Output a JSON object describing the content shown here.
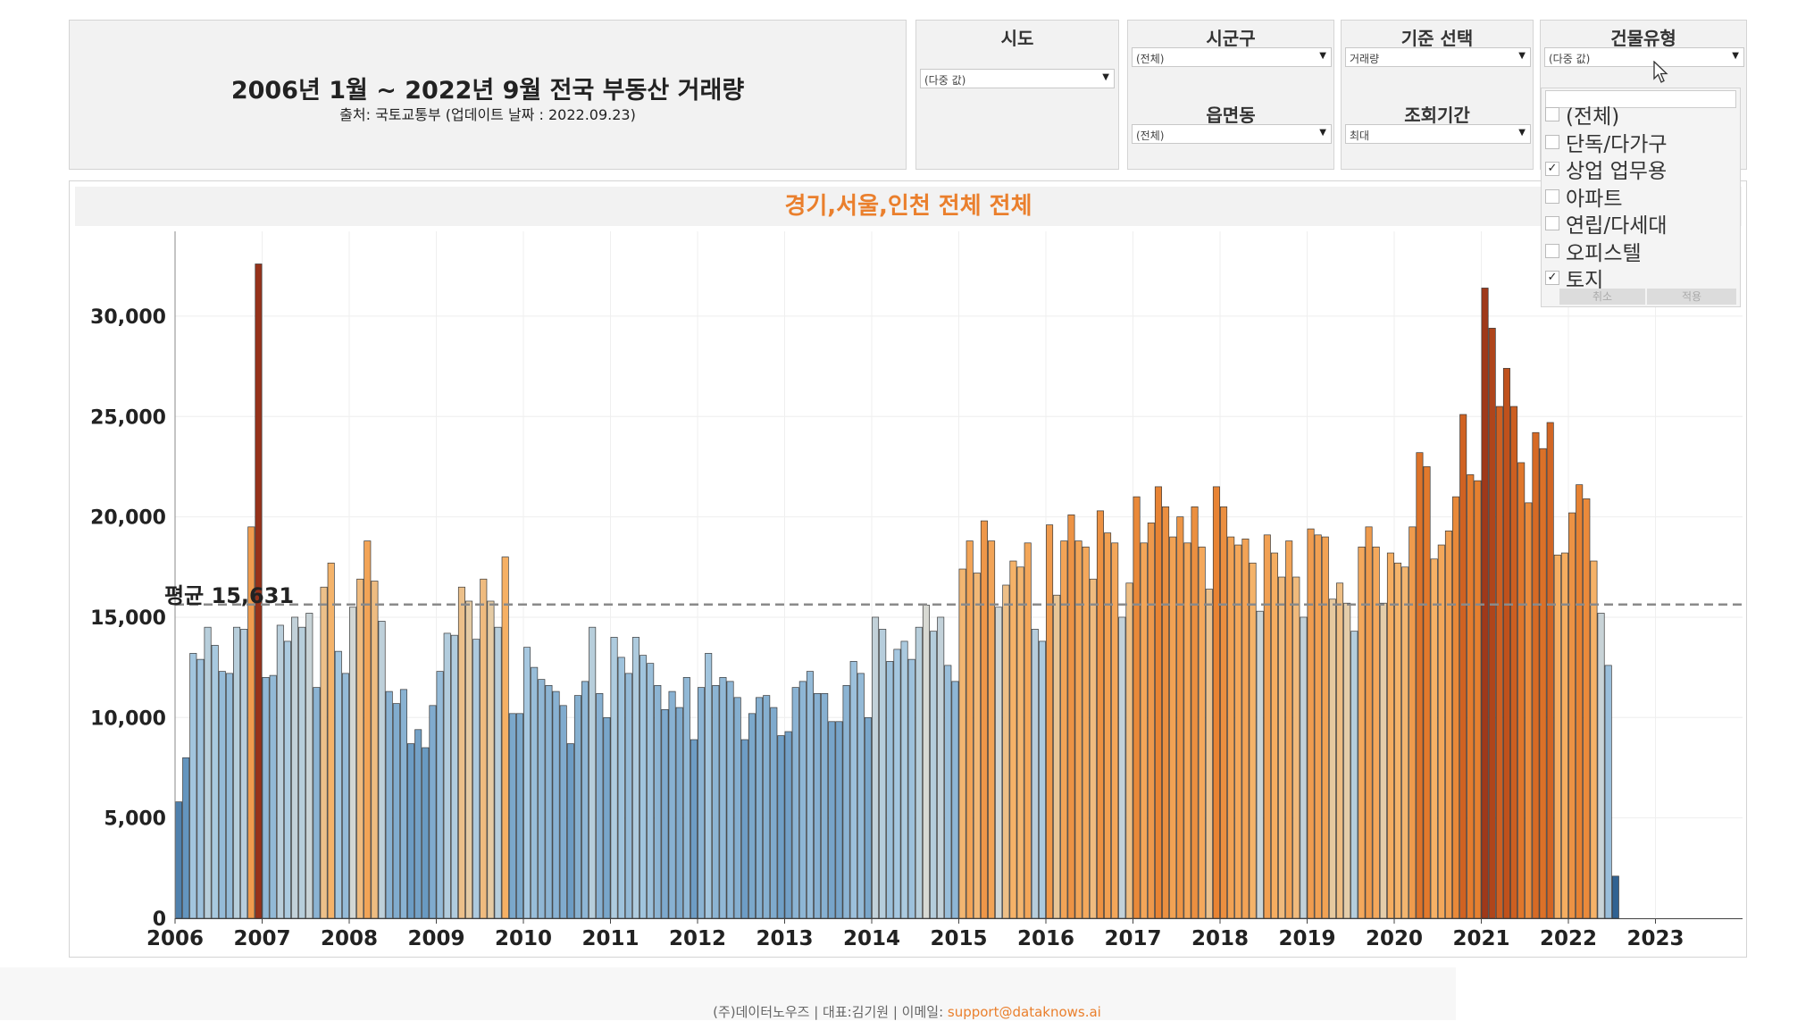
{
  "header": {
    "title": "2006년 1월 ~ 2022년 9월 전국 부동산 거래량",
    "subtitle": "출처: 국토교통부 (업데이트 날짜 :  2022.09.23)"
  },
  "filters": {
    "sido": {
      "label": "시도",
      "value": "(다중 값)"
    },
    "sigungu": {
      "label": "시군구",
      "value": "(전체)"
    },
    "criteria": {
      "label": "기준 선택",
      "value": "거래량"
    },
    "building_type": {
      "label": "건물유형",
      "value": "(다중 값)"
    },
    "eupmyeondong": {
      "label": "읍면동",
      "value": "(전체)"
    },
    "period": {
      "label": "조회기간",
      "value": "최대"
    }
  },
  "building_type_list": {
    "items": [
      {
        "label": "(전체)",
        "checked": false
      },
      {
        "label": "단독/다가구",
        "checked": false
      },
      {
        "label": "상업 업무용",
        "checked": true
      },
      {
        "label": "아파트",
        "checked": false
      },
      {
        "label": "연립/다세대",
        "checked": false
      },
      {
        "label": "오피스텔",
        "checked": false
      },
      {
        "label": "토지",
        "checked": true
      }
    ],
    "cancel_label": "취소",
    "apply_label": "적용",
    "check_mark": "✓"
  },
  "chart_data": {
    "type": "bar",
    "title": "경기,서울,인천 전체 전체",
    "x_ticks": [
      "2006",
      "2007",
      "2008",
      "2009",
      "2010",
      "2011",
      "2012",
      "2013",
      "2014",
      "2015",
      "2016",
      "2017",
      "2018",
      "2019",
      "2020",
      "2021",
      "2022",
      "2023"
    ],
    "x_range": [
      "2006-01",
      "2023-12"
    ],
    "y_ticks": [
      "0",
      "5,000",
      "10,000",
      "15,000",
      "20,000",
      "25,000",
      "30,000"
    ],
    "ylim": [
      0,
      34000
    ],
    "average": {
      "label": "평균 15,631",
      "value": 15631
    },
    "series": [
      {
        "start": "2006-01",
        "values": [
          5800,
          8000,
          13200,
          12900,
          14500,
          13600,
          12300,
          12200,
          14500,
          14400,
          19500,
          32600,
          12000,
          12100,
          14600,
          13800,
          15000,
          14500,
          15200,
          11500,
          16500,
          17700,
          13300,
          12200,
          15500,
          16900,
          18800,
          16800,
          14800,
          11300,
          10700,
          11400,
          8700,
          9400,
          8500,
          10600,
          12300,
          14200,
          14100,
          16500,
          15800,
          13900,
          16900,
          15800,
          14500,
          18000,
          10200,
          10200,
          13500,
          12500,
          11900,
          11600,
          11300,
          10600,
          8700,
          11100,
          11800,
          14500,
          11200,
          10000,
          14000,
          13000,
          12200,
          14000,
          13100,
          12700,
          11600,
          10400,
          11300,
          10500,
          12000,
          8900,
          11500,
          13200,
          11600,
          12000,
          11800,
          11000,
          8900,
          10200,
          11000,
          11100,
          10500,
          9100,
          9300,
          11500,
          11800,
          12300,
          11200,
          11200,
          9800,
          9800,
          11600,
          12800,
          12200,
          10000,
          15000,
          14400,
          12800,
          13400,
          13800,
          12900,
          14500,
          15600,
          14300,
          15000,
          12600,
          11800,
          17400,
          18800,
          17200,
          19800,
          18800,
          15500,
          16600,
          17800,
          17500,
          18700,
          14400,
          13800,
          19600,
          16100,
          18800,
          20100,
          18800,
          18500,
          16900,
          20300,
          19200,
          18700,
          15000,
          16700,
          21000,
          18700,
          19700,
          21500,
          20500,
          19000,
          20000,
          18700,
          20500,
          18500,
          16400,
          21500,
          20500,
          19000,
          18600,
          18900,
          17700,
          15300,
          19100,
          18200,
          17000,
          18800,
          17000,
          15000,
          19400,
          19100,
          19000,
          15900,
          16700,
          15700,
          14300,
          18500,
          19500,
          18500,
          15700,
          18200,
          17700,
          17500,
          19500,
          23200,
          22500,
          17900,
          18600,
          19300,
          21000,
          25100,
          22100,
          21800,
          31400,
          29400,
          25500,
          27400,
          25500,
          22700,
          20700,
          24200,
          23400,
          24700,
          18100,
          18200,
          20200,
          21600,
          20900,
          17800,
          15200,
          12600,
          2100
        ]
      }
    ]
  },
  "footer": {
    "text": "(주)데이터노우즈 | 대표:김기원 | 이메일: ",
    "email": "support@dataknows.ai"
  }
}
